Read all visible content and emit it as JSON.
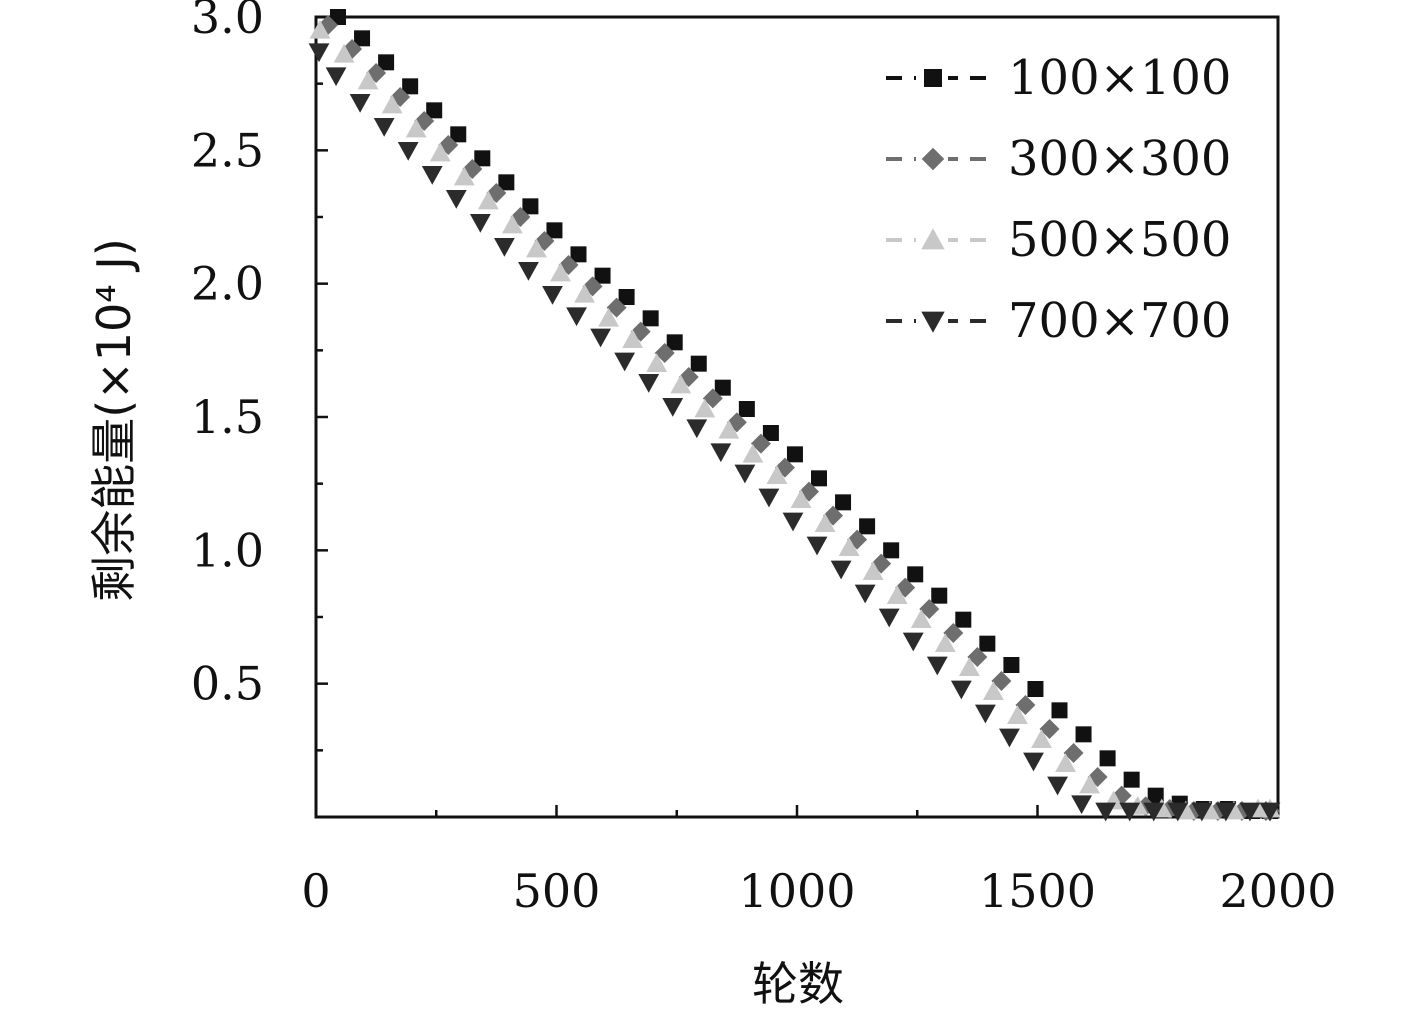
{
  "chart_data": {
    "type": "scatter",
    "xlabel": "轮数",
    "ylabel": "剩余能量(×10⁴ J)",
    "xlim": [
      0,
      2000
    ],
    "ylim": [
      0,
      3.0
    ],
    "xticks": [
      "0",
      "500",
      "1000",
      "1500",
      "2000"
    ],
    "yticks": [
      "0.5",
      "1.0",
      "1.5",
      "2.0",
      "2.5",
      "3.0"
    ],
    "ytick_values": [
      0.5,
      1.0,
      1.5,
      2.0,
      2.5,
      3.0
    ],
    "xtick_values": [
      0,
      500,
      1000,
      1500,
      2000
    ],
    "grid": false,
    "legend_position": "top-right",
    "x": [
      0,
      50,
      100,
      150,
      200,
      250,
      300,
      350,
      400,
      450,
      500,
      550,
      600,
      650,
      700,
      750,
      800,
      850,
      900,
      950,
      1000,
      1050,
      1100,
      1150,
      1200,
      1250,
      1300,
      1350,
      1400,
      1450,
      1500,
      1550,
      1600,
      1650,
      1700,
      1750,
      1800,
      1850,
      1900,
      1950,
      2000
    ],
    "series": [
      {
        "name": "100×100",
        "marker": "square",
        "color": "#111111",
        "values": [
          3.0,
          2.92,
          2.83,
          2.74,
          2.65,
          2.56,
          2.47,
          2.38,
          2.29,
          2.2,
          2.11,
          2.03,
          1.95,
          1.87,
          1.78,
          1.7,
          1.61,
          1.53,
          1.44,
          1.36,
          1.27,
          1.18,
          1.09,
          1.0,
          0.91,
          0.83,
          0.74,
          0.65,
          0.57,
          0.48,
          0.4,
          0.31,
          0.22,
          0.14,
          0.08,
          0.05,
          0.03,
          0.03,
          0.02,
          0.02,
          0.02
        ]
      },
      {
        "name": "300×300",
        "marker": "diamond",
        "color": "#6e6e6e",
        "values": [
          2.97,
          2.88,
          2.79,
          2.7,
          2.61,
          2.52,
          2.43,
          2.34,
          2.25,
          2.16,
          2.07,
          1.99,
          1.91,
          1.82,
          1.74,
          1.65,
          1.57,
          1.48,
          1.4,
          1.31,
          1.22,
          1.13,
          1.04,
          0.95,
          0.86,
          0.78,
          0.69,
          0.6,
          0.51,
          0.42,
          0.33,
          0.24,
          0.15,
          0.08,
          0.04,
          0.03,
          0.02,
          0.02,
          0.02,
          0.02,
          0.02
        ]
      },
      {
        "name": "500×500",
        "marker": "triangle-up",
        "color": "#c8c8c8",
        "values": [
          2.95,
          2.86,
          2.76,
          2.67,
          2.58,
          2.49,
          2.4,
          2.31,
          2.22,
          2.13,
          2.04,
          1.96,
          1.87,
          1.79,
          1.7,
          1.62,
          1.53,
          1.45,
          1.36,
          1.28,
          1.19,
          1.1,
          1.01,
          0.92,
          0.83,
          0.74,
          0.65,
          0.56,
          0.47,
          0.38,
          0.29,
          0.2,
          0.12,
          0.06,
          0.04,
          0.03,
          0.02,
          0.02,
          0.02,
          0.03,
          0.03
        ]
      },
      {
        "name": "700×700",
        "marker": "triangle-down",
        "color": "#2b2b2b",
        "values": [
          2.87,
          2.78,
          2.68,
          2.59,
          2.5,
          2.41,
          2.32,
          2.23,
          2.14,
          2.05,
          1.96,
          1.88,
          1.8,
          1.71,
          1.63,
          1.54,
          1.46,
          1.37,
          1.29,
          1.2,
          1.11,
          1.02,
          0.93,
          0.84,
          0.75,
          0.66,
          0.57,
          0.48,
          0.39,
          0.3,
          0.21,
          0.12,
          0.05,
          0.02,
          0.01,
          0.01,
          0.01,
          0.01,
          0.01,
          0.01,
          0.01
        ]
      }
    ]
  }
}
